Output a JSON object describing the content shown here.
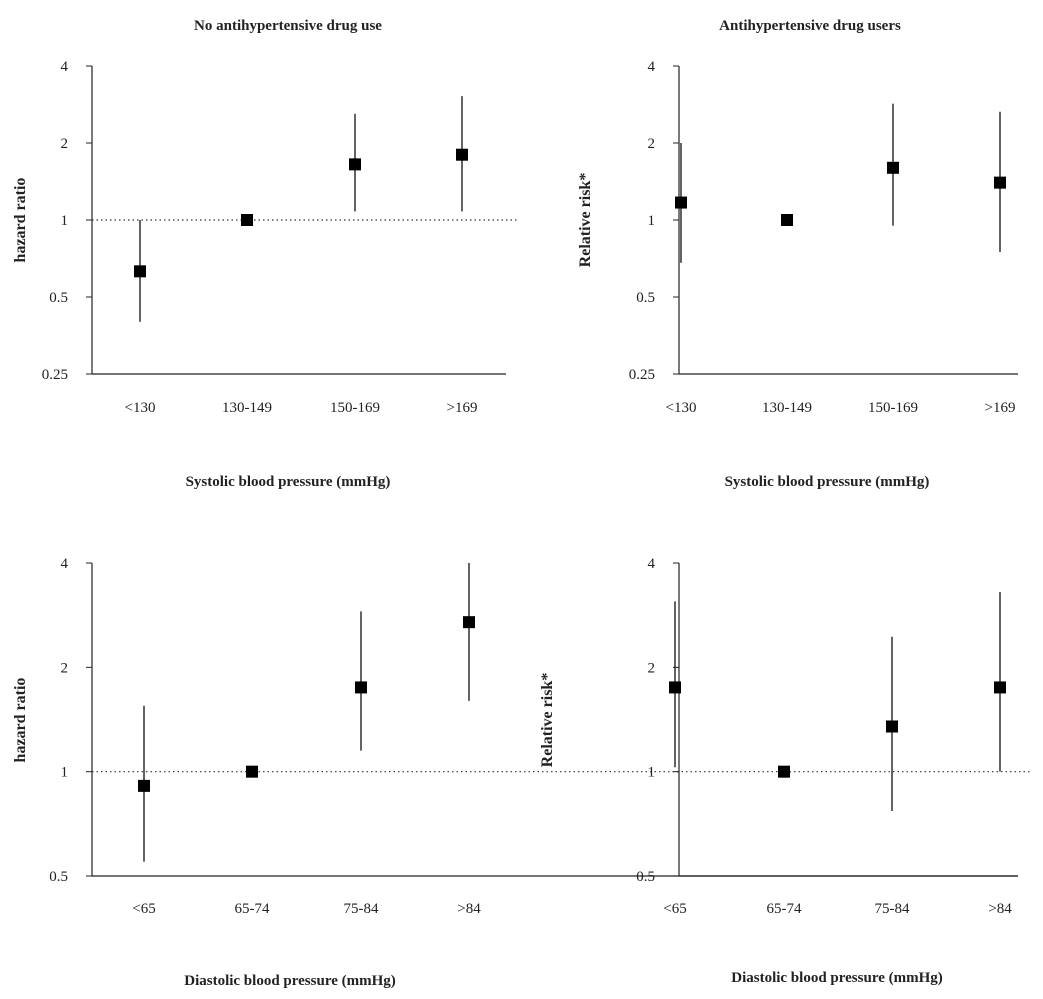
{
  "chart_data": [
    {
      "type": "scatter",
      "title": "No antihypertensive drug use",
      "xlabel": "Systolic blood pressure (mmHg)",
      "ylabel": "hazard ratio",
      "y_scale": "log",
      "ylim": [
        0.25,
        4
      ],
      "y_ticks": [
        "0.25",
        "0.5",
        "1",
        "2",
        "4"
      ],
      "reference_line": 1,
      "reference_line_style": "dotted",
      "categories": [
        "<130",
        "130-149",
        "150-169",
        ">169"
      ],
      "series": [
        {
          "values": [
            0.63,
            1.0,
            1.65,
            1.8
          ],
          "lower": [
            0.4,
            null,
            1.08,
            1.08
          ],
          "upper": [
            1.0,
            null,
            2.6,
            3.05
          ]
        }
      ]
    },
    {
      "type": "scatter",
      "title": "Antihypertensive drug users",
      "xlabel": "Systolic blood pressure (mmHg)",
      "ylabel": "Relative risk*",
      "y_scale": "log",
      "ylim": [
        0.25,
        4
      ],
      "y_ticks": [
        "0.25",
        "0.5",
        "1",
        "2",
        "4"
      ],
      "reference_line": null,
      "categories": [
        "<130",
        "130-149",
        "150-169",
        ">169"
      ],
      "series": [
        {
          "values": [
            1.17,
            1.0,
            1.6,
            1.4
          ],
          "lower": [
            0.68,
            null,
            0.95,
            0.75
          ],
          "upper": [
            2.0,
            null,
            2.85,
            2.65
          ]
        }
      ]
    },
    {
      "type": "scatter",
      "title": "",
      "xlabel": "Diastolic blood pressure (mmHg)",
      "ylabel": "hazard ratio",
      "y_scale": "log",
      "ylim": [
        0.5,
        4
      ],
      "y_ticks": [
        "0.5",
        "1",
        "2",
        "4"
      ],
      "reference_line": 1,
      "reference_line_style": "dotted",
      "categories": [
        "<65",
        "65-74",
        "75-84",
        ">84"
      ],
      "series": [
        {
          "values": [
            0.91,
            1.0,
            1.75,
            2.7
          ],
          "lower": [
            0.55,
            null,
            1.15,
            1.6
          ],
          "upper": [
            1.55,
            null,
            2.9,
            4.0
          ]
        }
      ]
    },
    {
      "type": "scatter",
      "title": "",
      "xlabel": "Diastolic blood pressure (mmHg)",
      "ylabel": "Relative risk*",
      "y_scale": "log",
      "ylim": [
        0.5,
        4
      ],
      "y_ticks": [
        "0.5",
        "1",
        "2",
        "4"
      ],
      "reference_line": null,
      "categories": [
        "<65",
        "65-74",
        "75-84",
        ">84"
      ],
      "series": [
        {
          "values": [
            1.75,
            1.0,
            1.35,
            1.75
          ],
          "lower": [
            1.03,
            null,
            0.77,
            1.0
          ],
          "upper": [
            3.1,
            null,
            2.45,
            3.3
          ]
        }
      ]
    }
  ]
}
